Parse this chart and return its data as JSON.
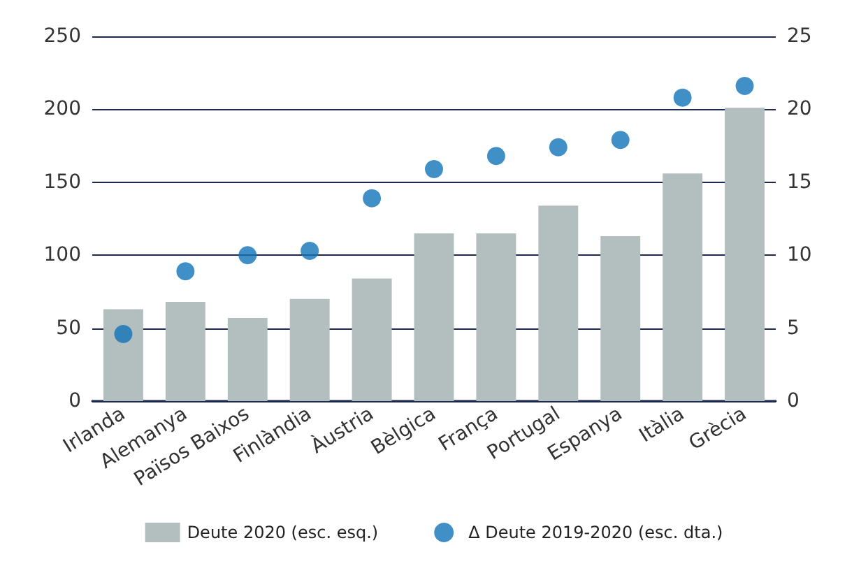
{
  "chart_data": {
    "type": "bar",
    "categories": [
      "Irlanda",
      "Alemanya",
      "Països Baixos",
      "Finlàndia",
      "Àustria",
      "Bèlgica",
      "França",
      "Portugal",
      "Espanya",
      "Itàlia",
      "Grècia"
    ],
    "series": [
      {
        "name": "Deute 2020 (esc. esq.)",
        "color": "#b3bebf",
        "values": [
          63,
          68,
          57,
          70,
          84,
          115,
          115,
          134,
          113,
          156,
          201
        ]
      },
      {
        "name": "Δ Deute 2019-2020 (esc. dta.)",
        "type": "scatter",
        "axis": "y2",
        "color": "#1273b9",
        "values": [
          4.6,
          8.9,
          10.0,
          10.3,
          13.9,
          15.9,
          16.8,
          17.4,
          17.9,
          20.8,
          21.6
        ]
      }
    ],
    "ylim": [
      0,
      250
    ],
    "yticks": [
      0,
      50,
      100,
      150,
      200,
      250
    ],
    "y2lim": [
      0,
      25
    ],
    "y2ticks": [
      0,
      5,
      10,
      15,
      20,
      25
    ],
    "grid": "y",
    "legend": "bottom",
    "marker": "circle"
  }
}
